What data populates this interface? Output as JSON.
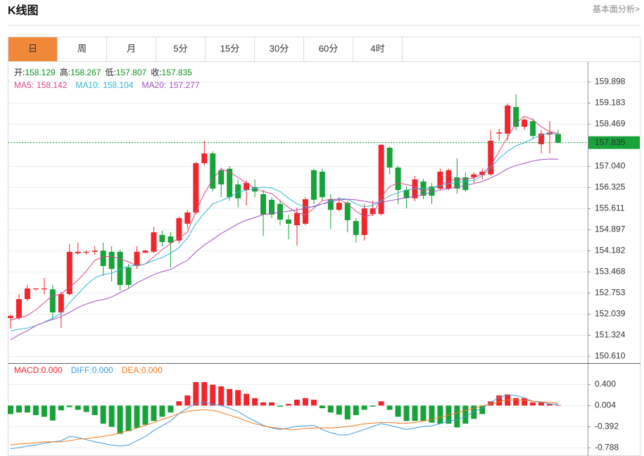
{
  "header": {
    "title": "K线图",
    "link": "基本面分析>"
  },
  "tabs": {
    "items": [
      "日",
      "周",
      "月",
      "5分",
      "15分",
      "30分",
      "60分",
      "4时"
    ],
    "active": 0,
    "active_color": "#f0883a"
  },
  "chart_data": [
    {
      "type": "candlestick",
      "quote_labels": [
        "开:",
        "高:",
        "低:",
        "收:"
      ],
      "up_color": "#f0262d",
      "down_color": "#17a23a",
      "open": [
        151.9,
        151.9,
        152.54,
        152.87,
        152.87,
        152.87,
        152.09,
        152.71,
        154.09,
        154.11,
        154.14,
        154.18,
        154.14,
        154.14,
        153.61,
        153.66,
        154.11,
        154.14,
        154.71,
        154.66,
        154.52,
        155.09,
        155.47,
        157.14,
        157.47,
        156.9,
        156.95,
        156.42,
        156.23,
        156.33,
        156.09,
        155.9,
        155.76,
        155.23,
        155.04,
        155.09,
        156.9,
        156.85,
        155.92,
        155.56,
        155.8,
        155.18,
        154.71,
        155.42,
        155.42,
        157.66,
        156.99,
        156.23,
        155.95,
        156.52,
        156.35,
        156.28,
        156.28,
        156.66,
        156.66,
        156.66,
        156.73,
        156.76,
        158.14,
        158.14,
        159.04,
        158.37,
        158.56,
        157.78,
        158.11,
        158.129
      ],
      "high": [
        152.02,
        152.71,
        153.02,
        152.9,
        153.26,
        153.02,
        152.78,
        154.4,
        154.45,
        154.18,
        154.33,
        154.45,
        154.33,
        154.21,
        153.73,
        154.33,
        154.21,
        154.99,
        154.85,
        154.8,
        155.33,
        155.56,
        157.18,
        157.9,
        157.54,
        156.99,
        157.04,
        156.59,
        156.56,
        156.59,
        156.23,
        155.99,
        155.87,
        155.4,
        155.64,
        155.99,
        156.95,
        156.95,
        156.09,
        155.99,
        155.87,
        155.28,
        155.76,
        155.87,
        157.78,
        157.71,
        157.06,
        156.35,
        156.71,
        156.61,
        156.47,
        156.95,
        156.95,
        157.3,
        156.83,
        156.83,
        156.95,
        158.26,
        158.3,
        159.16,
        159.47,
        158.68,
        158.66,
        158.26,
        158.56,
        158.267
      ],
      "low": [
        151.54,
        151.83,
        152.47,
        152.83,
        152.71,
        151.83,
        151.56,
        152.66,
        154.04,
        154.04,
        154.04,
        153.33,
        153.14,
        152.83,
        152.9,
        153.56,
        154.09,
        154.09,
        154.33,
        153.61,
        154.42,
        154.92,
        155.4,
        157.06,
        156.18,
        155.99,
        155.87,
        155.64,
        155.71,
        155.99,
        154.68,
        155.28,
        155.04,
        154.56,
        154.35,
        155.04,
        155.76,
        155.87,
        154.92,
        155.52,
        154.8,
        154.45,
        154.52,
        155.35,
        155.37,
        156.76,
        155.76,
        155.61,
        155.85,
        155.92,
        155.76,
        156.23,
        156.23,
        156.11,
        156.16,
        156.47,
        156.59,
        156.71,
        157.9,
        157.9,
        158.26,
        158.26,
        157.95,
        157.47,
        157.47,
        157.807
      ],
      "close": [
        151.97,
        152.54,
        152.9,
        152.9,
        152.9,
        152.09,
        152.71,
        154.14,
        154.14,
        154.14,
        154.18,
        153.66,
        153.56,
        153.02,
        153.02,
        154.14,
        154.18,
        154.8,
        154.47,
        154.45,
        155.28,
        155.47,
        157.14,
        157.47,
        156.28,
        156.42,
        155.99,
        155.95,
        156.47,
        156.18,
        155.4,
        155.4,
        155.23,
        155.09,
        155.45,
        155.92,
        155.9,
        155.99,
        155.56,
        155.8,
        155.21,
        154.71,
        155.61,
        155.61,
        157.76,
        156.99,
        156.23,
        155.95,
        156.59,
        156.04,
        156.04,
        156.85,
        156.9,
        156.28,
        156.23,
        156.76,
        156.85,
        157.9,
        158.18,
        159.09,
        158.37,
        158.61,
        158.06,
        158.14,
        158.18,
        157.835
      ],
      "series": [
        {
          "name": "MA5:",
          "color": "#e0468a",
          "values": [
            151.83,
            151.9,
            151.99,
            152.18,
            152.42,
            152.66,
            152.71,
            152.95,
            153.18,
            153.49,
            153.85,
            153.97,
            153.99,
            153.9,
            153.8,
            153.66,
            153.73,
            153.97,
            154.21,
            154.42,
            154.61,
            154.8,
            155.52,
            156.11,
            156.59,
            156.95,
            156.83,
            156.66,
            156.47,
            156.28,
            156.18,
            156.11,
            155.87,
            155.64,
            155.45,
            155.4,
            155.61,
            155.87,
            155.92,
            155.92,
            155.76,
            155.52,
            155.33,
            155.4,
            155.99,
            156.35,
            156.47,
            156.42,
            156.35,
            156.18,
            156.28,
            156.42,
            156.52,
            156.61,
            156.59,
            156.64,
            156.78,
            157.06,
            157.54,
            158.02,
            158.49,
            158.73,
            158.61,
            158.37,
            158.21,
            158.142
          ]
        },
        {
          "name": "MA10:",
          "color": "#33b6d2",
          "values": [
            151.47,
            151.52,
            151.56,
            151.64,
            151.76,
            151.9,
            152.06,
            152.42,
            152.71,
            153.02,
            153.26,
            153.37,
            153.42,
            153.54,
            153.66,
            153.68,
            153.73,
            153.85,
            153.95,
            154.09,
            154.28,
            154.61,
            155.09,
            155.45,
            155.76,
            155.87,
            155.99,
            156.16,
            156.23,
            156.28,
            156.33,
            156.3,
            156.18,
            155.95,
            155.76,
            155.66,
            155.66,
            155.76,
            155.87,
            155.95,
            155.92,
            155.76,
            155.66,
            155.71,
            155.87,
            156.04,
            156.14,
            156.23,
            156.28,
            156.28,
            156.3,
            156.37,
            156.45,
            156.49,
            156.52,
            156.56,
            156.71,
            156.99,
            157.3,
            157.54,
            157.73,
            157.83,
            157.97,
            158.09,
            158.16,
            158.104
          ]
        },
        {
          "name": "MA20:",
          "color": "#a24fc2",
          "values": [
            151.16,
            151.33,
            151.47,
            151.64,
            151.76,
            151.85,
            151.95,
            152.09,
            152.26,
            152.37,
            152.47,
            152.52,
            152.61,
            152.76,
            152.9,
            153.09,
            153.23,
            153.37,
            153.47,
            153.54,
            153.71,
            153.85,
            154.14,
            154.37,
            154.56,
            154.76,
            154.92,
            155.09,
            155.21,
            155.3,
            155.4,
            155.45,
            155.47,
            155.52,
            155.56,
            155.61,
            155.68,
            155.76,
            155.83,
            155.9,
            155.92,
            155.9,
            155.85,
            155.8,
            155.8,
            155.87,
            155.92,
            155.97,
            156.02,
            156.09,
            156.16,
            156.23,
            156.28,
            156.33,
            156.37,
            156.45,
            156.52,
            156.64,
            156.78,
            156.95,
            157.06,
            157.14,
            157.21,
            157.26,
            157.28,
            157.277
          ]
        }
      ],
      "ylim": [
        150.374,
        160.565
      ],
      "yticks": [
        159.898,
        159.183,
        158.469,
        {
          "value": 157.04,
          "label": "157.040"
        },
        156.325,
        155.611,
        154.897,
        154.182,
        153.468,
        152.753,
        152.039,
        151.324,
        {
          "value": 150.61,
          "label": "150.610"
        }
      ],
      "grid": true
    },
    {
      "type": "macd",
      "histogram": {
        "name": "MACD:",
        "color": "#f0262d",
        "up_color": "#f0262d",
        "down_color": "#17a23a",
        "values": [
          -0.16,
          -0.13,
          -0.13,
          -0.18,
          -0.21,
          -0.28,
          -0.09,
          -0.03,
          -0.08,
          -0.12,
          -0.18,
          -0.34,
          -0.4,
          -0.53,
          -0.48,
          -0.42,
          -0.36,
          -0.29,
          -0.21,
          -0.13,
          0.08,
          0.19,
          0.44,
          0.44,
          0.39,
          0.36,
          0.31,
          0.29,
          0.22,
          0.14,
          0.06,
          0.06,
          -0.02,
          0.03,
          0.11,
          0.14,
          0.11,
          -0.05,
          -0.13,
          -0.17,
          -0.26,
          -0.18,
          -0.08,
          -0.02,
          0.08,
          -0.08,
          -0.21,
          -0.29,
          -0.29,
          -0.29,
          -0.32,
          -0.34,
          -0.34,
          -0.41,
          -0.34,
          -0.25,
          -0.16,
          0.08,
          0.19,
          0.21,
          0.14,
          0.14,
          0.06,
          0.06,
          0.03,
          0.01
        ]
      },
      "series": [
        {
          "name": "DIFF:",
          "color": "#3d9be0",
          "values": [
            -0.81,
            -0.79,
            -0.76,
            -0.74,
            -0.71,
            -0.68,
            -0.66,
            -0.58,
            -0.6,
            -0.64,
            -0.68,
            -0.71,
            -0.74,
            -0.76,
            -0.74,
            -0.66,
            -0.58,
            -0.47,
            -0.38,
            -0.29,
            -0.15,
            -0.05,
            0.04,
            0.06,
            0.03,
            0,
            -0.05,
            -0.11,
            -0.21,
            -0.29,
            -0.37,
            -0.42,
            -0.45,
            -0.42,
            -0.39,
            -0.38,
            -0.37,
            -0.45,
            -0.51,
            -0.55,
            -0.55,
            -0.5,
            -0.45,
            -0.39,
            -0.34,
            -0.37,
            -0.41,
            -0.45,
            -0.42,
            -0.39,
            -0.38,
            -0.34,
            -0.29,
            -0.27,
            -0.21,
            -0.11,
            -0.05,
            0.06,
            0.15,
            0.2,
            0.19,
            0.14,
            0.08,
            0.06,
            0.03,
            0.02
          ]
        },
        {
          "name": "DEA:",
          "color": "#f07a1e",
          "values": [
            -0.74,
            -0.72,
            -0.71,
            -0.7,
            -0.68,
            -0.68,
            -0.68,
            -0.66,
            -0.63,
            -0.62,
            -0.6,
            -0.58,
            -0.55,
            -0.51,
            -0.47,
            -0.42,
            -0.37,
            -0.32,
            -0.26,
            -0.21,
            -0.15,
            -0.11,
            -0.09,
            -0.08,
            -0.09,
            -0.13,
            -0.18,
            -0.23,
            -0.29,
            -0.34,
            -0.38,
            -0.41,
            -0.43,
            -0.45,
            -0.45,
            -0.43,
            -0.42,
            -0.42,
            -0.42,
            -0.41,
            -0.39,
            -0.37,
            -0.34,
            -0.33,
            -0.32,
            -0.32,
            -0.33,
            -0.33,
            -0.32,
            -0.29,
            -0.26,
            -0.22,
            -0.18,
            -0.14,
            -0.09,
            -0.05,
            -0.01,
            0.03,
            0.07,
            0.11,
            0.11,
            0.1,
            0.08,
            0.07,
            0.06,
            0.04
          ]
        }
      ],
      "legend_value_labels": [
        "0.000",
        "0.000",
        "0.000"
      ],
      "ylim": [
        -0.946,
        0.796
      ],
      "yticks": [
        {
          "value": 0.4,
          "label": "0.400"
        },
        0.004,
        -0.392,
        -0.788
      ],
      "grid": true
    }
  ]
}
